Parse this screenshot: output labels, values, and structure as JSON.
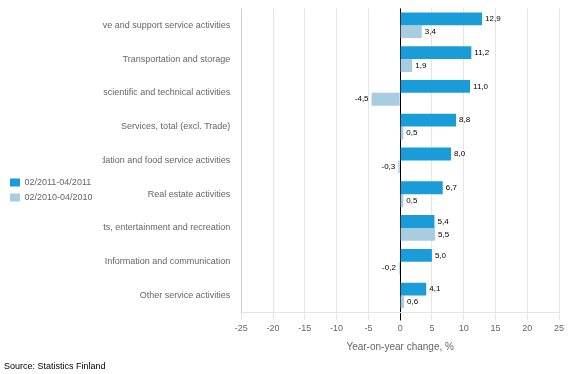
{
  "chart_data": {
    "type": "bar",
    "orientation": "horizontal",
    "categories": [
      "Administrative and support service activities",
      "Transportation and storage",
      "Professional, scientific and technical activities",
      "Services, total (excl. Trade)",
      "Accommodation and food service activities",
      "Real estate activities",
      "Arts, entertainment and recreation",
      "Information and communication",
      "Other service activities"
    ],
    "series": [
      {
        "name": "02/2011-04/2011",
        "color": "#1a9cd8",
        "values": [
          12.9,
          11.2,
          11.0,
          8.8,
          8.0,
          6.7,
          5.4,
          5.0,
          4.1
        ],
        "value_labels": [
          "12,9",
          "11,2",
          "11,0",
          "8,8",
          "8,0",
          "6,7",
          "5,4",
          "5,0",
          "4,1"
        ]
      },
      {
        "name": "02/2010-04/2010",
        "color": "#a8cce0",
        "values": [
          3.4,
          1.9,
          -4.5,
          0.5,
          -0.3,
          0.5,
          5.5,
          -0.2,
          0.6
        ],
        "value_labels": [
          "3,4",
          "1,9",
          "-4,5",
          "0,5",
          "-0,3",
          "0,5",
          "5,5",
          "-0,2",
          "0,6"
        ]
      }
    ],
    "x_label": "Year-on-year change, %",
    "xlim": [
      -25,
      25
    ],
    "xticks": [
      -25,
      -20,
      -15,
      -10,
      -5,
      0,
      5,
      10,
      15,
      20,
      25
    ],
    "grid": true,
    "legend": "left",
    "data_labels": true,
    "source": "Source: Statistics Finland"
  }
}
